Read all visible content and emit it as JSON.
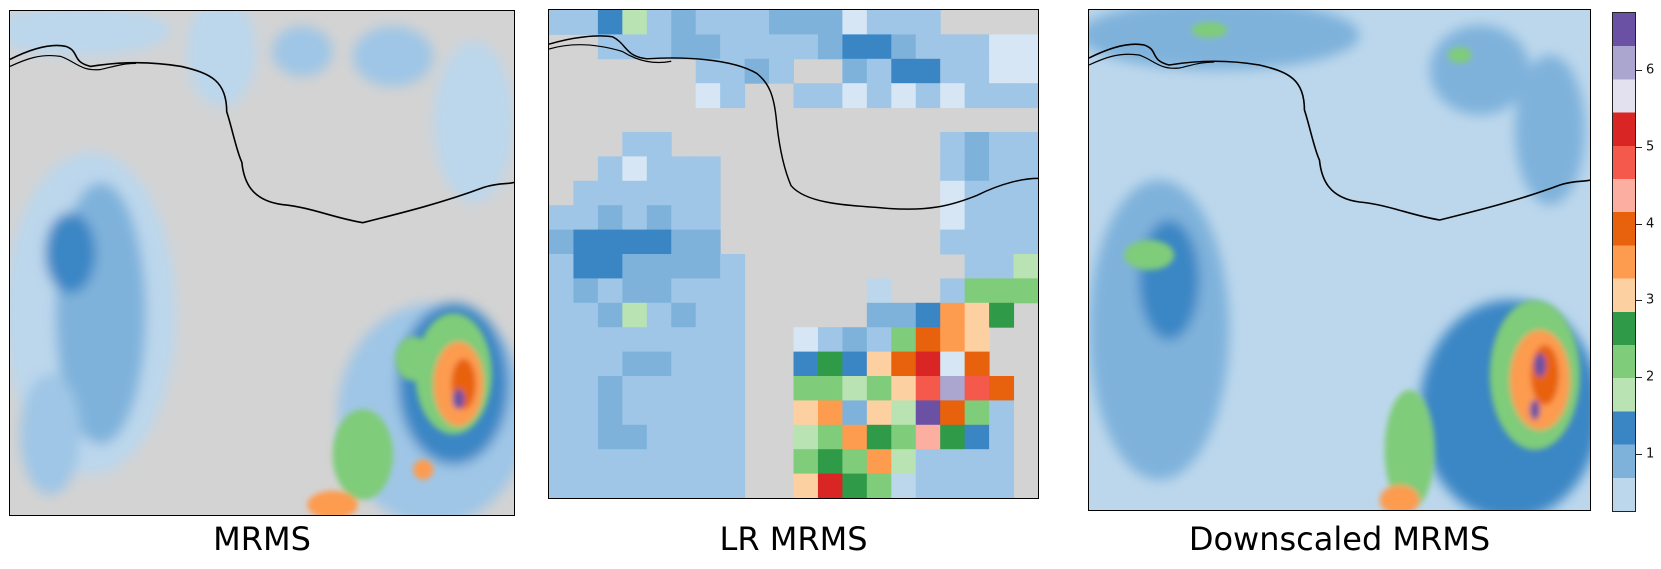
{
  "panels": [
    {
      "id": "mrms",
      "title": "MRMS"
    },
    {
      "id": "lr",
      "title": "LR MRMS"
    },
    {
      "id": "down",
      "title": "Downscaled MRMS"
    }
  ],
  "colorbar": {
    "ticks": [
      "1",
      "2",
      "3",
      "4",
      "5",
      "6"
    ],
    "min": 0.25,
    "max": 6.75,
    "colors": [
      "#bcd7ec",
      "#7fb2db",
      "#3a86c5",
      "#b9e3b3",
      "#7fcc7a",
      "#2f9a48",
      "#fdd0a2",
      "#fd9b4f",
      "#e8620e",
      "#fcaea0",
      "#f5594b",
      "#d92523",
      "#e3e1f0",
      "#aba6d0",
      "#6a51a3"
    ]
  }
}
